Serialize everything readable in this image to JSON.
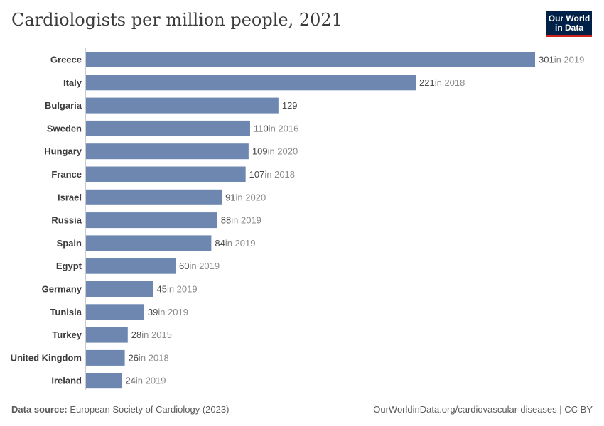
{
  "header": {
    "title": "Cardiologists per million people, 2021",
    "logo_line1": "Our World",
    "logo_line2": "in Data"
  },
  "footer": {
    "source_label": "Data source:",
    "source_text": "European Society of Cardiology (2023)",
    "url_text": "OurWorldinData.org/cardiovascular-diseases | CC BY"
  },
  "colors": {
    "bar": "#6d87b0",
    "value_text": "#4a4a4a",
    "note_text": "#8a8a8a",
    "label_text": "#3c3c3c",
    "logo_bg": "#002147",
    "logo_accent": "#ce261e"
  },
  "chart_data": {
    "type": "bar",
    "orientation": "horizontal",
    "categories": [
      "Greece",
      "Italy",
      "Bulgaria",
      "Sweden",
      "Hungary",
      "France",
      "Israel",
      "Russia",
      "Spain",
      "Egypt",
      "Germany",
      "Tunisia",
      "Turkey",
      "United Kingdom",
      "Ireland"
    ],
    "values": [
      301,
      221,
      129,
      110,
      109,
      107,
      91,
      88,
      84,
      60,
      45,
      39,
      28,
      26,
      24
    ],
    "notes": [
      "in 2019",
      "in 2018",
      "",
      "in 2016",
      "in 2020",
      "in 2018",
      "in 2020",
      "in 2019",
      "in 2019",
      "in 2019",
      "in 2019",
      "in 2019",
      "in 2015",
      "in 2018",
      "in 2019"
    ],
    "title": "Cardiologists per million people, 2021",
    "xlim": [
      0,
      301
    ]
  }
}
